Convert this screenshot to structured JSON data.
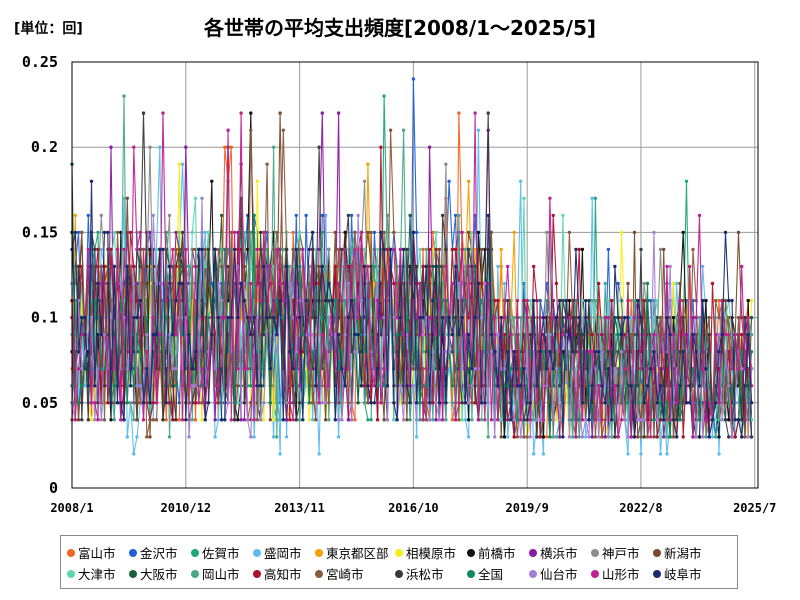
{
  "unit_label": "[単位：回]",
  "chart_data": {
    "type": "line",
    "title": "各世帯の平均支出頻度[2008/1～2025/5]",
    "xlabel": "",
    "ylabel": "",
    "x_ticks": [
      "2008/1",
      "2010/12",
      "2013/11",
      "2016/10",
      "2019/9",
      "2022/8",
      "2025/7"
    ],
    "y_ticks": [
      "0",
      "0.05",
      "0.1",
      "0.15",
      "0.2",
      "0.25"
    ],
    "ylim": [
      0,
      0.25
    ],
    "xlim": [
      "2008/1",
      "2025/7"
    ],
    "grid": true,
    "legend_position": "bottom",
    "series": [
      {
        "name": "富山市",
        "color": "#f26522",
        "approx_level": 0.08,
        "spread": 0.05
      },
      {
        "name": "金沢市",
        "color": "#1f5fd6",
        "approx_level": 0.09,
        "spread": 0.05
      },
      {
        "name": "佐賀市",
        "color": "#1ea874",
        "approx_level": 0.08,
        "spread": 0.05
      },
      {
        "name": "盛岡市",
        "color": "#5bbcf0",
        "approx_level": 0.07,
        "spread": 0.05
      },
      {
        "name": "東京都区部",
        "color": "#f5a000",
        "approx_level": 0.08,
        "spread": 0.04
      },
      {
        "name": "相模原市",
        "color": "#f4ee1a",
        "approx_level": 0.07,
        "spread": 0.04
      },
      {
        "name": "前橋市",
        "color": "#111111",
        "approx_level": 0.08,
        "spread": 0.05
      },
      {
        "name": "横浜市",
        "color": "#8a1aa0",
        "approx_level": 0.08,
        "spread": 0.05
      },
      {
        "name": "神戸市",
        "color": "#8c8c8c",
        "approx_level": 0.08,
        "spread": 0.04
      },
      {
        "name": "新潟市",
        "color": "#7a4a2a",
        "approx_level": 0.08,
        "spread": 0.05
      },
      {
        "name": "大津市",
        "color": "#5fd6b0",
        "approx_level": 0.08,
        "spread": 0.05
      },
      {
        "name": "大阪市",
        "color": "#1b5e3a",
        "approx_level": 0.08,
        "spread": 0.04
      },
      {
        "name": "岡山市",
        "color": "#4aa88a",
        "approx_level": 0.08,
        "spread": 0.05
      },
      {
        "name": "高知市",
        "color": "#b0102e",
        "approx_level": 0.08,
        "spread": 0.05
      },
      {
        "name": "宮崎市",
        "color": "#8b5a3c",
        "approx_level": 0.08,
        "spread": 0.05
      },
      {
        "name": "浜松市",
        "color": "#3a3a3a",
        "approx_level": 0.08,
        "spread": 0.05
      },
      {
        "name": "全国",
        "color": "#0f8a5a",
        "approx_level": 0.07,
        "spread": 0.03
      },
      {
        "name": "仙台市",
        "color": "#a27fd6",
        "approx_level": 0.07,
        "spread": 0.04
      },
      {
        "name": "山形市",
        "color": "#c02090",
        "approx_level": 0.08,
        "spread": 0.05
      },
      {
        "name": "岐阜市",
        "color": "#1a2a6e",
        "approx_level": 0.08,
        "spread": 0.05
      }
    ]
  }
}
